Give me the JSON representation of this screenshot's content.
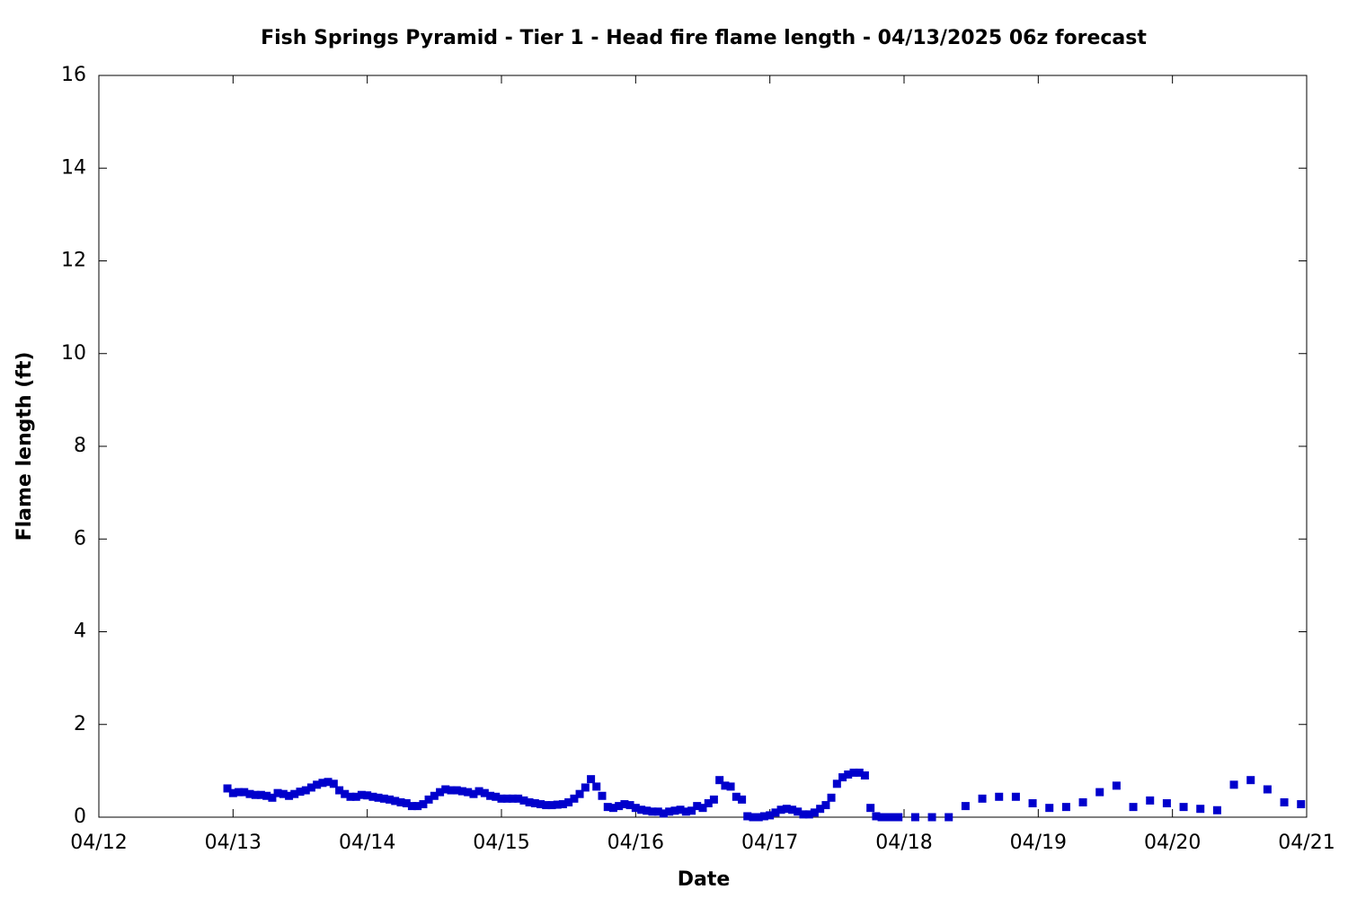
{
  "chart_data": {
    "type": "scatter",
    "title": "Fish Springs Pyramid - Tier 1 - Head fire flame length - 04/13/2025 06z forecast",
    "xlabel": "Date",
    "ylabel": "Flame length (ft)",
    "xlim": [
      12,
      21
    ],
    "ylim": [
      0,
      16
    ],
    "xticks": [
      {
        "value": 12,
        "label": "04/12"
      },
      {
        "value": 13,
        "label": "04/13"
      },
      {
        "value": 14,
        "label": "04/14"
      },
      {
        "value": 15,
        "label": "04/15"
      },
      {
        "value": 16,
        "label": "04/16"
      },
      {
        "value": 17,
        "label": "04/17"
      },
      {
        "value": 18,
        "label": "04/18"
      },
      {
        "value": 19,
        "label": "04/19"
      },
      {
        "value": 20,
        "label": "04/20"
      },
      {
        "value": 21,
        "label": "04/21"
      }
    ],
    "yticks": [
      0,
      2,
      4,
      6,
      8,
      10,
      12,
      14,
      16
    ],
    "grid": false,
    "color": "#0000cc",
    "x": [
      12.958,
      13.0,
      13.042,
      13.083,
      13.125,
      13.167,
      13.208,
      13.25,
      13.292,
      13.333,
      13.375,
      13.417,
      13.458,
      13.5,
      13.542,
      13.583,
      13.625,
      13.667,
      13.708,
      13.75,
      13.792,
      13.833,
      13.875,
      13.917,
      13.958,
      14.0,
      14.042,
      14.083,
      14.125,
      14.167,
      14.208,
      14.25,
      14.292,
      14.333,
      14.375,
      14.417,
      14.458,
      14.5,
      14.542,
      14.583,
      14.625,
      14.667,
      14.708,
      14.75,
      14.792,
      14.833,
      14.875,
      14.917,
      14.958,
      15.0,
      15.042,
      15.083,
      15.125,
      15.167,
      15.208,
      15.25,
      15.292,
      15.333,
      15.375,
      15.417,
      15.458,
      15.5,
      15.542,
      15.583,
      15.625,
      15.667,
      15.708,
      15.75,
      15.792,
      15.833,
      15.875,
      15.917,
      15.958,
      16.0,
      16.042,
      16.083,
      16.125,
      16.167,
      16.208,
      16.25,
      16.292,
      16.333,
      16.375,
      16.417,
      16.458,
      16.5,
      16.542,
      16.583,
      16.625,
      16.667,
      16.708,
      16.75,
      16.792,
      16.833,
      16.875,
      16.917,
      16.958,
      17.0,
      17.042,
      17.083,
      17.125,
      17.167,
      17.208,
      17.25,
      17.292,
      17.333,
      17.375,
      17.417,
      17.458,
      17.5,
      17.542,
      17.583,
      17.625,
      17.667,
      17.708,
      17.75,
      17.792,
      17.833,
      17.875,
      17.917,
      17.958,
      18.083,
      18.208,
      18.333,
      18.458,
      18.583,
      18.708,
      18.833,
      18.958,
      19.083,
      19.208,
      19.333,
      19.458,
      19.583,
      19.708,
      19.833,
      19.958,
      20.083,
      20.208,
      20.333,
      20.458,
      20.583,
      20.708,
      20.833,
      20.958
    ],
    "values": [
      0.62,
      0.52,
      0.54,
      0.54,
      0.5,
      0.48,
      0.48,
      0.46,
      0.42,
      0.52,
      0.5,
      0.46,
      0.5,
      0.55,
      0.58,
      0.64,
      0.7,
      0.74,
      0.76,
      0.72,
      0.58,
      0.5,
      0.44,
      0.44,
      0.48,
      0.47,
      0.44,
      0.42,
      0.4,
      0.38,
      0.35,
      0.32,
      0.3,
      0.24,
      0.24,
      0.28,
      0.38,
      0.46,
      0.54,
      0.6,
      0.58,
      0.58,
      0.56,
      0.54,
      0.5,
      0.56,
      0.52,
      0.46,
      0.44,
      0.4,
      0.4,
      0.4,
      0.4,
      0.36,
      0.32,
      0.3,
      0.28,
      0.26,
      0.26,
      0.27,
      0.28,
      0.32,
      0.4,
      0.5,
      0.64,
      0.82,
      0.66,
      0.46,
      0.22,
      0.2,
      0.24,
      0.28,
      0.26,
      0.2,
      0.16,
      0.14,
      0.12,
      0.12,
      0.08,
      0.12,
      0.14,
      0.16,
      0.12,
      0.14,
      0.24,
      0.2,
      0.3,
      0.38,
      0.8,
      0.68,
      0.66,
      0.44,
      0.38,
      0.02,
      0,
      0,
      0.02,
      0.04,
      0.1,
      0.16,
      0.18,
      0.16,
      0.12,
      0.06,
      0.06,
      0.1,
      0.18,
      0.26,
      0.42,
      0.72,
      0.86,
      0.92,
      0.96,
      0.96,
      0.9,
      0.2,
      0.02,
      0,
      0,
      0,
      0,
      0,
      0,
      0,
      0.24,
      0.4,
      0.44,
      0.44,
      0.3,
      0.2,
      0.22,
      0.32,
      0.54,
      0.68,
      0.22,
      0.36,
      0.3,
      0.22,
      0.18,
      0.15,
      0.7,
      0.8,
      0.6,
      0.32,
      0.28
    ]
  }
}
